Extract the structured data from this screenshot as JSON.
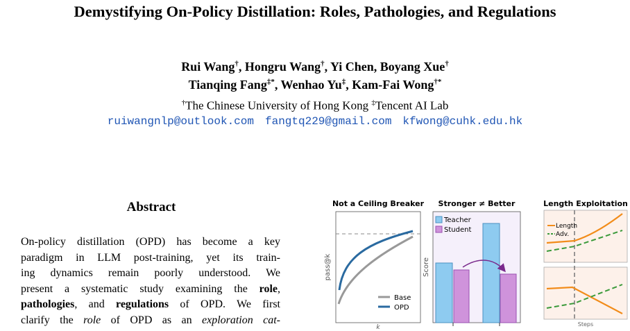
{
  "paper": {
    "title": "Demystifying On-Policy Distillation: Roles, Pathologies, and Regulations",
    "authors": [
      [
        "Rui Wang",
        "†",
        ", Hongru Wang",
        "†",
        ", Yi Chen, Boyang Xue",
        "†"
      ],
      [
        "Tianqing Fang",
        "‡*",
        ", Wenhao Yu",
        "‡",
        ", Kam-Fai Wong",
        "†*"
      ]
    ],
    "affiliation": [
      "†",
      "The Chinese University of Hong Kong ",
      "‡",
      "Tencent AI Lab"
    ],
    "emails": [
      "ruiwangnlp@outlook.com",
      "fangtq229@gmail.com",
      "kfwong@cuhk.edu.hk"
    ],
    "abstract": {
      "heading": "Abstract",
      "lines": [
        [
          "On-policy distillation (OPD) has become a key"
        ],
        [
          "paradigm in LLM post-training, yet its train-"
        ],
        [
          "ing dynamics remain poorly understood. We"
        ],
        [
          "present a systematic study examining the ",
          "role",
          ","
        ],
        [
          "pathologies",
          ", and ",
          "regulations",
          " of OPD. We first"
        ],
        [
          "clarify the ",
          "role",
          " of OPD as an ",
          "exploration cat-"
        ]
      ]
    },
    "figure": {
      "panels": [
        {
          "title": "Not a Ceiling Breaker",
          "ylabel": "pass@k",
          "xlabel": "k",
          "legend": [
            "Base",
            "OPD"
          ]
        },
        {
          "title": "Stronger ≠ Better",
          "ylabel": "Score",
          "legend": [
            "Teacher",
            "Student"
          ]
        },
        {
          "title": "Length Exploitation",
          "xlabel": "Steps",
          "legend": [
            "Length",
            "Adv."
          ]
        }
      ]
    }
  }
}
